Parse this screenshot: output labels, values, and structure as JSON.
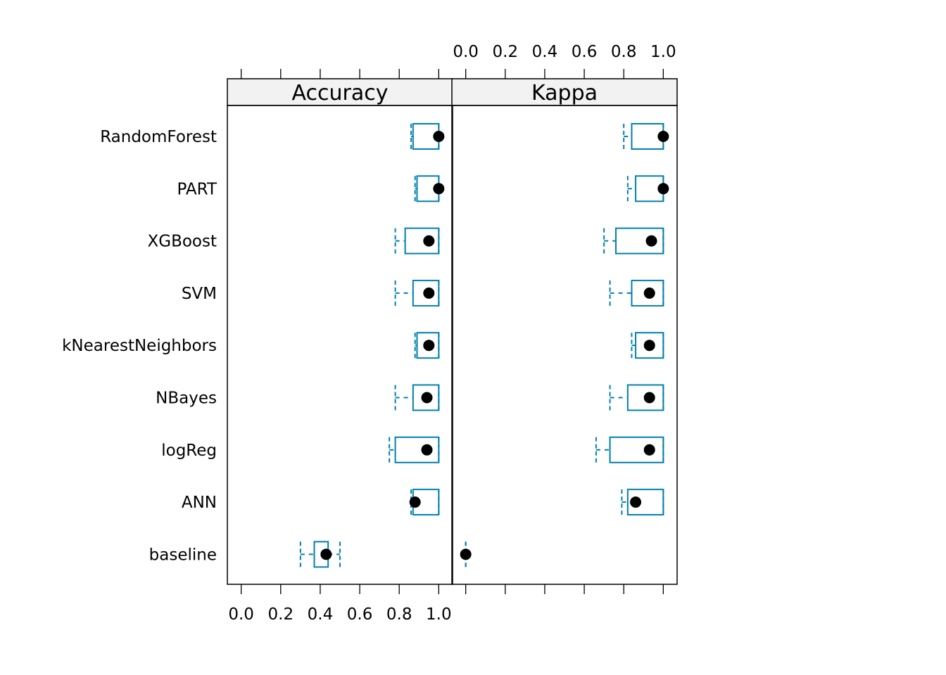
{
  "chart_data": {
    "type": "boxplot",
    "panels": [
      {
        "title": "Accuracy",
        "xlim": [
          -0.07,
          1.07
        ],
        "ticks": [
          "0.0",
          "0.2",
          "0.4",
          "0.6",
          "0.8",
          "1.0"
        ],
        "tick_side": "bottom",
        "rows": [
          {
            "category": "RandomForest",
            "whisker_low": 0.86,
            "q1": 0.87,
            "median": 1.0,
            "q3": 1.0,
            "whisker_high": 1.0
          },
          {
            "category": "PART",
            "whisker_low": 0.88,
            "q1": 0.89,
            "median": 1.0,
            "q3": 1.0,
            "whisker_high": 1.0
          },
          {
            "category": "XGBoost",
            "whisker_low": 0.78,
            "q1": 0.83,
            "median": 0.95,
            "q3": 1.0,
            "whisker_high": 1.0
          },
          {
            "category": "SVM",
            "whisker_low": 0.78,
            "q1": 0.87,
            "median": 0.95,
            "q3": 1.0,
            "whisker_high": 1.0
          },
          {
            "category": "kNearestNeighbors",
            "whisker_low": 0.88,
            "q1": 0.89,
            "median": 0.95,
            "q3": 1.0,
            "whisker_high": 1.0
          },
          {
            "category": "NBayes",
            "whisker_low": 0.78,
            "q1": 0.87,
            "median": 0.94,
            "q3": 1.0,
            "whisker_high": 1.0
          },
          {
            "category": "logReg",
            "whisker_low": 0.75,
            "q1": 0.78,
            "median": 0.94,
            "q3": 1.0,
            "whisker_high": 1.0
          },
          {
            "category": "ANN",
            "whisker_low": 0.86,
            "q1": 0.87,
            "median": 0.88,
            "q3": 1.0,
            "whisker_high": 1.0
          },
          {
            "category": "baseline",
            "whisker_low": 0.3,
            "q1": 0.37,
            "median": 0.43,
            "q3": 0.44,
            "whisker_high": 0.5
          }
        ]
      },
      {
        "title": "Kappa",
        "xlim": [
          -0.07,
          1.07
        ],
        "ticks": [
          "0.0",
          "0.2",
          "0.4",
          "0.6",
          "0.8",
          "1.0"
        ],
        "tick_side": "top",
        "rows": [
          {
            "category": "RandomForest",
            "whisker_low": 0.8,
            "q1": 0.84,
            "median": 1.0,
            "q3": 1.0,
            "whisker_high": 1.0
          },
          {
            "category": "PART",
            "whisker_low": 0.82,
            "q1": 0.86,
            "median": 1.0,
            "q3": 1.0,
            "whisker_high": 1.0
          },
          {
            "category": "XGBoost",
            "whisker_low": 0.7,
            "q1": 0.76,
            "median": 0.94,
            "q3": 1.0,
            "whisker_high": 1.0
          },
          {
            "category": "SVM",
            "whisker_low": 0.73,
            "q1": 0.84,
            "median": 0.93,
            "q3": 1.0,
            "whisker_high": 1.0
          },
          {
            "category": "kNearestNeighbors",
            "whisker_low": 0.84,
            "q1": 0.86,
            "median": 0.93,
            "q3": 1.0,
            "whisker_high": 1.0
          },
          {
            "category": "NBayes",
            "whisker_low": 0.73,
            "q1": 0.82,
            "median": 0.93,
            "q3": 1.0,
            "whisker_high": 1.0
          },
          {
            "category": "logReg",
            "whisker_low": 0.66,
            "q1": 0.73,
            "median": 0.93,
            "q3": 1.0,
            "whisker_high": 1.0
          },
          {
            "category": "ANN",
            "whisker_low": 0.79,
            "q1": 0.82,
            "median": 0.86,
            "q3": 1.0,
            "whisker_high": 1.0
          },
          {
            "category": "baseline",
            "whisker_low": 0.0,
            "q1": 0.0,
            "median": 0.0,
            "q3": 0.0,
            "whisker_high": 0.0
          }
        ]
      }
    ],
    "colors": {
      "box": "#0080b0",
      "median_dot": "#000000",
      "strip_bg": "#f2f2f2",
      "frame": "#000000"
    }
  }
}
